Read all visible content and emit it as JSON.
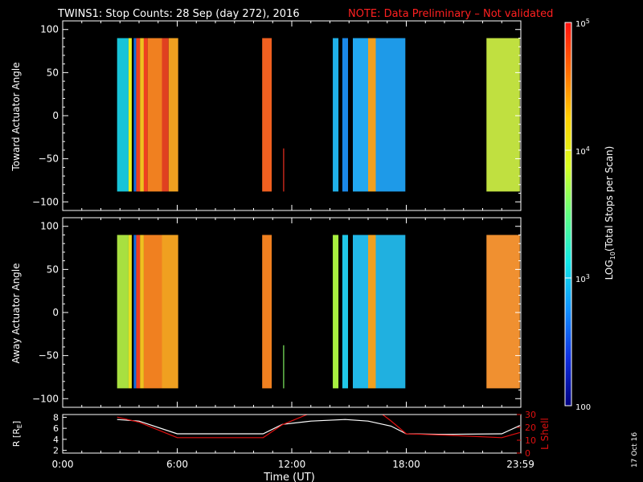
{
  "header": {
    "title": "TWINS1: Stop Counts: 28 Sep (day 272), 2016",
    "note": "NOTE: Data Preliminary – Not validated"
  },
  "footer": {
    "date_stamp": "17 Oct 16"
  },
  "colors": {
    "background": "#000000",
    "axes": "#ffffff",
    "note": "#ff2020",
    "r_line": "#ffffff",
    "lshell_line": "#e01010"
  },
  "chart_data": [
    {
      "type": "heatmap",
      "panel": "top",
      "ylabel": "Toward Actuator Angle",
      "ylim": [
        -110,
        110
      ],
      "yticks": [
        100,
        50,
        0,
        -50,
        -100
      ],
      "ytick_labels": [
        "100",
        "50",
        "0",
        "−50",
        "−100"
      ],
      "x_range_hours": [
        0,
        24
      ],
      "angle_range": [
        -88,
        90
      ],
      "blocks": [
        {
          "start": 2.85,
          "end": 3.45,
          "color": "#17c4d8"
        },
        {
          "start": 3.45,
          "end": 3.62,
          "color": "#e8f020"
        },
        {
          "start": 3.62,
          "end": 3.72,
          "color": "#000000"
        },
        {
          "start": 3.72,
          "end": 3.85,
          "color": "#1070e0"
        },
        {
          "start": 3.85,
          "end": 4.05,
          "color": "#f04020"
        },
        {
          "start": 4.05,
          "end": 4.25,
          "color": "#f0c020"
        },
        {
          "start": 4.25,
          "end": 4.45,
          "color": "#f04020"
        },
        {
          "start": 4.45,
          "end": 5.2,
          "color": "#f08020"
        },
        {
          "start": 5.2,
          "end": 5.55,
          "color": "#e04020"
        },
        {
          "start": 5.55,
          "end": 6.05,
          "color": "#f0a020"
        },
        {
          "start": 10.45,
          "end": 10.95,
          "color": "#f06020"
        },
        {
          "start": 11.55,
          "end": 11.6,
          "color": "#f03020",
          "ylim_block": [
            -88,
            -38
          ]
        },
        {
          "start": 14.15,
          "end": 14.45,
          "color": "#20b0e8"
        },
        {
          "start": 14.45,
          "end": 14.65,
          "color": "#000000"
        },
        {
          "start": 14.65,
          "end": 14.95,
          "color": "#1a88e8"
        },
        {
          "start": 14.95,
          "end": 15.2,
          "color": "#000000"
        },
        {
          "start": 15.2,
          "end": 16.0,
          "color": "#22a8f0"
        },
        {
          "start": 16.0,
          "end": 16.4,
          "color": "#f0a020"
        },
        {
          "start": 16.4,
          "end": 17.95,
          "color": "#1e9ae8"
        },
        {
          "start": 22.2,
          "end": 23.95,
          "color": "#c0e040"
        }
      ]
    },
    {
      "type": "heatmap",
      "panel": "bottom",
      "ylabel": "Away Actuator Angle",
      "ylim": [
        -110,
        110
      ],
      "yticks": [
        100,
        50,
        0,
        -50,
        -100
      ],
      "ytick_labels": [
        "100",
        "50",
        "0",
        "−50",
        "−100"
      ],
      "x_range_hours": [
        0,
        24
      ],
      "angle_range": [
        -88,
        90
      ],
      "blocks": [
        {
          "start": 2.85,
          "end": 3.45,
          "color": "#a8e040"
        },
        {
          "start": 3.45,
          "end": 3.62,
          "color": "#e8e020"
        },
        {
          "start": 3.62,
          "end": 3.72,
          "color": "#000000"
        },
        {
          "start": 3.72,
          "end": 3.85,
          "color": "#1070e0"
        },
        {
          "start": 3.85,
          "end": 4.05,
          "color": "#f04020"
        },
        {
          "start": 4.05,
          "end": 4.25,
          "color": "#f0c020"
        },
        {
          "start": 4.25,
          "end": 5.2,
          "color": "#f08020"
        },
        {
          "start": 5.2,
          "end": 6.05,
          "color": "#f0a020"
        },
        {
          "start": 10.45,
          "end": 10.95,
          "color": "#f08020"
        },
        {
          "start": 11.55,
          "end": 11.6,
          "color": "#80f060",
          "ylim_block": [
            -88,
            -38
          ]
        },
        {
          "start": 14.15,
          "end": 14.45,
          "color": "#a8f040"
        },
        {
          "start": 14.45,
          "end": 14.65,
          "color": "#000000"
        },
        {
          "start": 14.65,
          "end": 14.95,
          "color": "#20c8e8"
        },
        {
          "start": 14.95,
          "end": 15.2,
          "color": "#000000"
        },
        {
          "start": 15.2,
          "end": 16.0,
          "color": "#22b8e8"
        },
        {
          "start": 16.0,
          "end": 16.4,
          "color": "#f0a020"
        },
        {
          "start": 16.4,
          "end": 17.95,
          "color": "#20b0e0"
        },
        {
          "start": 22.2,
          "end": 23.95,
          "color": "#f09030"
        }
      ]
    },
    {
      "type": "line",
      "panel": "ephemeris",
      "xlabel": "Time (UT)",
      "xticks_hours": [
        0,
        6,
        12,
        18,
        23.983
      ],
      "xtick_labels": [
        "0:00",
        "6:00",
        "12:00",
        "18:00",
        "23:59"
      ],
      "ylabel": "R [RE]",
      "ylabel_main": "R [R",
      "ylabel_sub": "E",
      "ylabel_close": "]",
      "ylim": [
        1.5,
        8.5
      ],
      "yticks": [
        2,
        4,
        6,
        8
      ],
      "ylabel_right": "L Shell",
      "ylim_right": [
        0,
        30
      ],
      "yticks_right": [
        0,
        10,
        20,
        30
      ],
      "series": [
        {
          "name": "R [RE]",
          "axis": "left",
          "color": "#ffffff",
          "x": [
            2.85,
            4.0,
            6.0,
            10.5,
            11.5,
            13.0,
            14.8,
            16.0,
            17.2,
            18.0,
            20.0,
            23.0,
            23.95
          ],
          "y": [
            7.6,
            7.3,
            5.0,
            5.0,
            6.7,
            7.3,
            7.6,
            7.3,
            6.4,
            5.0,
            4.9,
            5.0,
            6.5
          ]
        },
        {
          "name": "L Shell",
          "axis": "right",
          "color": "#e01010",
          "x": [
            2.85,
            4.0,
            6.0,
            10.5,
            11.5,
            12.8,
            13.3,
            16.4,
            17.2,
            18.0,
            20.0,
            23.0,
            23.95
          ],
          "y": [
            28,
            24,
            12,
            12,
            22,
            30,
            34,
            34,
            25,
            15,
            14,
            12,
            16
          ]
        }
      ]
    }
  ],
  "colorbar": {
    "label_pre": "LOG",
    "label_sub": "10",
    "label_post": "(Total Stops per Scan)",
    "tick_labels": [
      {
        "value": 100000,
        "base": "10",
        "exp": "5"
      },
      {
        "value": 10000,
        "base": "10",
        "exp": "4"
      },
      {
        "value": 1000,
        "base": "10",
        "exp": "3"
      },
      {
        "value": 100,
        "base": "100",
        "exp": ""
      }
    ],
    "range": [
      100,
      100000
    ],
    "scale": "log",
    "stops": [
      "#ff1010",
      "#ff6a00",
      "#ffd000",
      "#d8ff20",
      "#60ff80",
      "#10e8e8",
      "#1090ff",
      "#1030e0",
      "#000080"
    ]
  }
}
